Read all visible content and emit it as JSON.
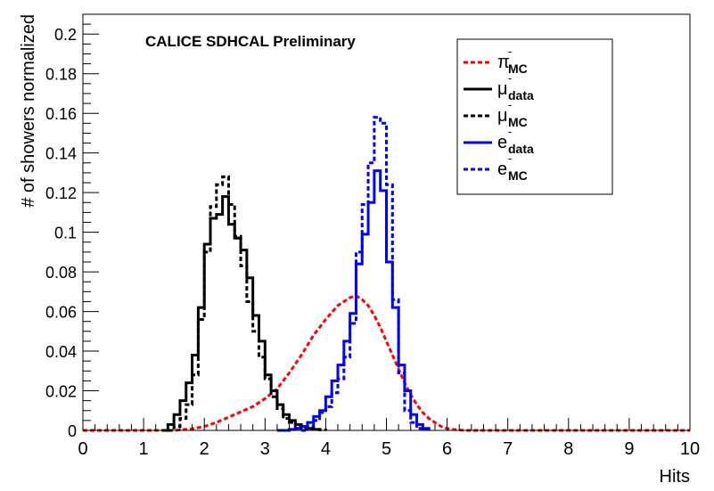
{
  "chart_data": {
    "type": "line",
    "title": "CALICE SDHCAL Preliminary",
    "xlabel": "Hits",
    "ylabel": "# of showers normalized",
    "xlim": [
      0,
      10
    ],
    "ylim": [
      0,
      0.21
    ],
    "xticks": [
      "0",
      "1",
      "2",
      "3",
      "4",
      "5",
      "6",
      "7",
      "8",
      "9",
      "10"
    ],
    "yticks": [
      "0",
      "0.02",
      "0.04",
      "0.06",
      "0.08",
      "0.1",
      "0.12",
      "0.14",
      "0.16",
      "0.18",
      "0.2"
    ],
    "grid": false,
    "legend_position": "top-right",
    "series": [
      {
        "name": "π⁻MC",
        "label_main": "π",
        "label_sup": "-",
        "label_sub": "MC",
        "color": "#ff0000",
        "dash": "dashed",
        "stepped": false,
        "x": [
          0.0,
          1.5,
          1.8,
          2.0,
          2.2,
          2.5,
          2.8,
          3.0,
          3.2,
          3.4,
          3.6,
          3.8,
          4.0,
          4.2,
          4.4,
          4.5,
          4.6,
          4.7,
          4.8,
          4.9,
          5.0,
          5.1,
          5.2,
          5.3,
          5.4,
          5.5,
          5.6,
          5.7,
          5.8,
          5.9,
          6.0,
          6.1,
          6.3,
          10.0
        ],
        "y": [
          0.0,
          0.0,
          0.0008,
          0.002,
          0.004,
          0.008,
          0.012,
          0.016,
          0.021,
          0.029,
          0.038,
          0.048,
          0.056,
          0.063,
          0.067,
          0.068,
          0.066,
          0.063,
          0.058,
          0.052,
          0.045,
          0.038,
          0.031,
          0.024,
          0.018,
          0.013,
          0.009,
          0.006,
          0.004,
          0.002,
          0.001,
          0.0005,
          0.0,
          0.0
        ]
      },
      {
        "name": "μ⁻data",
        "label_main": "μ",
        "label_sup": "-",
        "label_sub": "data",
        "color": "#000000",
        "dash": "solid",
        "stepped": true,
        "x": [
          1.3,
          1.4,
          1.5,
          1.6,
          1.7,
          1.8,
          1.9,
          2.0,
          2.1,
          2.2,
          2.3,
          2.4,
          2.5,
          2.6,
          2.7,
          2.8,
          2.9,
          3.0,
          3.1,
          3.2,
          3.3,
          3.4,
          3.5,
          3.6,
          3.7,
          3.8,
          3.9
        ],
        "y": [
          0.0,
          0.003,
          0.008,
          0.015,
          0.024,
          0.038,
          0.062,
          0.094,
          0.107,
          0.109,
          0.118,
          0.104,
          0.097,
          0.091,
          0.077,
          0.058,
          0.045,
          0.028,
          0.02,
          0.013,
          0.008,
          0.005,
          0.003,
          0.002,
          0.001,
          0.0005,
          0.0
        ]
      },
      {
        "name": "μ⁻MC",
        "label_main": "μ",
        "label_sup": "-",
        "label_sub": "MC",
        "color": "#000000",
        "dash": "dashed",
        "stepped": true,
        "x": [
          1.4,
          1.5,
          1.6,
          1.7,
          1.8,
          1.9,
          2.0,
          2.1,
          2.2,
          2.3,
          2.4,
          2.5,
          2.6,
          2.7,
          2.8,
          2.9,
          3.0,
          3.1,
          3.2,
          3.3,
          3.4,
          3.5,
          3.6,
          3.7,
          3.8,
          3.9,
          4.0
        ],
        "y": [
          0.0,
          0.002,
          0.006,
          0.013,
          0.028,
          0.056,
          0.09,
          0.113,
          0.124,
          0.128,
          0.114,
          0.098,
          0.083,
          0.065,
          0.05,
          0.037,
          0.026,
          0.017,
          0.011,
          0.006,
          0.004,
          0.002,
          0.001,
          0.0008,
          0.0005,
          0.0003,
          0.0
        ]
      },
      {
        "name": "e⁻data",
        "label_main": "e",
        "label_sup": "-",
        "label_sub": "data",
        "color": "#0000ff",
        "dash": "solid",
        "stepped": true,
        "x": [
          3.2,
          3.4,
          3.5,
          3.6,
          3.7,
          3.8,
          3.9,
          4.0,
          4.1,
          4.2,
          4.3,
          4.4,
          4.5,
          4.6,
          4.7,
          4.8,
          4.9,
          5.0,
          5.1,
          5.2,
          5.3,
          5.4,
          5.5,
          5.6,
          5.7
        ],
        "y": [
          0.0,
          0.0005,
          0.001,
          0.002,
          0.004,
          0.007,
          0.01,
          0.017,
          0.025,
          0.033,
          0.045,
          0.059,
          0.084,
          0.099,
          0.115,
          0.131,
          0.121,
          0.085,
          0.062,
          0.033,
          0.02,
          0.008,
          0.003,
          0.001,
          0.0
        ]
      },
      {
        "name": "e⁻MC",
        "label_main": "e",
        "label_sup": "-",
        "label_sub": "MC",
        "color": "#0000ff",
        "dash": "dashed",
        "stepped": true,
        "x": [
          3.6,
          3.7,
          3.8,
          3.9,
          4.0,
          4.1,
          4.2,
          4.3,
          4.4,
          4.5,
          4.6,
          4.7,
          4.8,
          4.9,
          5.0,
          5.1,
          5.2,
          5.3,
          5.4,
          5.5,
          5.6,
          5.7
        ],
        "y": [
          0.0,
          0.002,
          0.005,
          0.009,
          0.012,
          0.019,
          0.026,
          0.037,
          0.054,
          0.09,
          0.114,
          0.135,
          0.158,
          0.155,
          0.124,
          0.066,
          0.029,
          0.01,
          0.004,
          0.001,
          0.0005,
          0.0
        ]
      }
    ]
  }
}
